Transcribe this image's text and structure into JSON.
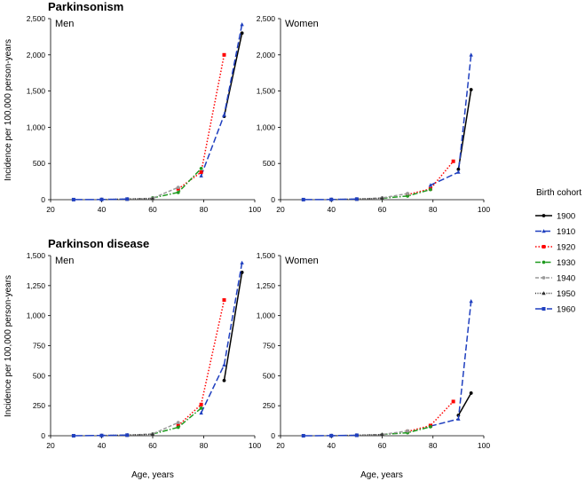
{
  "chart_data": {
    "type": "line",
    "shared": {
      "ylabel": "Incidence per 100,000 person-years",
      "xlabel": "Age, years",
      "xlim": [
        20,
        100
      ],
      "xticks": [
        20,
        40,
        60,
        80,
        100
      ],
      "legend_title": "Birth cohort",
      "legend_position": "right"
    },
    "cohorts": [
      {
        "name": "1900",
        "color": "#000000",
        "dash": "",
        "marker": "circle"
      },
      {
        "name": "1910",
        "color": "#1f3fbf",
        "dash": "7,3",
        "marker": "triangle"
      },
      {
        "name": "1920",
        "color": "#ff0000",
        "dash": "1.5,2",
        "marker": "square"
      },
      {
        "name": "1930",
        "color": "#1f9a1f",
        "dash": "6,2,1.5,2",
        "marker": "circle"
      },
      {
        "name": "1940",
        "color": "#999999",
        "dash": "4,2",
        "marker": "circle"
      },
      {
        "name": "1950",
        "color": "#333333",
        "dash": "1,1.5",
        "marker": "triangle"
      },
      {
        "name": "1960",
        "color": "#1f3fbf",
        "dash": "10,3",
        "marker": "square"
      }
    ],
    "panels": [
      {
        "id": "parkinsonism-men",
        "title": "Parkinsonism",
        "label": "Men",
        "ylim": [
          0,
          2500
        ],
        "yticks": [
          0,
          500,
          1000,
          1500,
          2000,
          2500
        ],
        "ytick_labels": [
          "0",
          "500",
          "1,000",
          "1,500",
          "2,000",
          "2,500"
        ],
        "series": [
          {
            "name": "1900",
            "x": [
              88,
              95
            ],
            "y": [
              1150,
              2300
            ]
          },
          {
            "name": "1910",
            "x": [
              79,
              88,
              95
            ],
            "y": [
              330,
              1170,
              2420
            ]
          },
          {
            "name": "1920",
            "x": [
              70,
              79,
              88
            ],
            "y": [
              150,
              380,
              2000
            ]
          },
          {
            "name": "1930",
            "x": [
              60,
              70,
              79
            ],
            "y": [
              25,
              100,
              430
            ]
          },
          {
            "name": "1940",
            "x": [
              50,
              60,
              70
            ],
            "y": [
              8,
              20,
              170
            ]
          },
          {
            "name": "1950",
            "x": [
              40,
              50,
              60
            ],
            "y": [
              3,
              8,
              15
            ]
          },
          {
            "name": "1960",
            "x": [
              29,
              40,
              50
            ],
            "y": [
              1,
              3,
              8
            ]
          }
        ]
      },
      {
        "id": "parkinsonism-women",
        "title": "",
        "label": "Women",
        "ylim": [
          0,
          2500
        ],
        "yticks": [
          0,
          500,
          1000,
          1500,
          2000,
          2500
        ],
        "ytick_labels": [
          "0",
          "500",
          "1,000",
          "1,500",
          "2,000",
          "2,500"
        ],
        "series": [
          {
            "name": "1900",
            "x": [
              90,
              95
            ],
            "y": [
              420,
              1520
            ]
          },
          {
            "name": "1910",
            "x": [
              79,
              90,
              95
            ],
            "y": [
              200,
              380,
              2000
            ]
          },
          {
            "name": "1920",
            "x": [
              70,
              79,
              88
            ],
            "y": [
              70,
              150,
              530
            ]
          },
          {
            "name": "1930",
            "x": [
              60,
              70,
              79
            ],
            "y": [
              20,
              50,
              140
            ]
          },
          {
            "name": "1940",
            "x": [
              50,
              60,
              70
            ],
            "y": [
              8,
              25,
              85
            ]
          },
          {
            "name": "1950",
            "x": [
              40,
              50,
              60
            ],
            "y": [
              3,
              8,
              20
            ]
          },
          {
            "name": "1960",
            "x": [
              29,
              40,
              50
            ],
            "y": [
              1,
              3,
              8
            ]
          }
        ]
      },
      {
        "id": "parkinson-disease-men",
        "title": "Parkinson disease",
        "label": "Men",
        "ylim": [
          0,
          1500
        ],
        "yticks": [
          0,
          250,
          500,
          750,
          1000,
          1250,
          1500
        ],
        "ytick_labels": [
          "0",
          "250",
          "500",
          "750",
          "1,000",
          "1,250",
          "1,500"
        ],
        "series": [
          {
            "name": "1900",
            "x": [
              88,
              95
            ],
            "y": [
              460,
              1360
            ]
          },
          {
            "name": "1910",
            "x": [
              79,
              88,
              95
            ],
            "y": [
              190,
              590,
              1440
            ]
          },
          {
            "name": "1920",
            "x": [
              70,
              79,
              88
            ],
            "y": [
              85,
              260,
              1130
            ]
          },
          {
            "name": "1930",
            "x": [
              60,
              70,
              79
            ],
            "y": [
              15,
              70,
              230
            ]
          },
          {
            "name": "1940",
            "x": [
              50,
              60,
              70
            ],
            "y": [
              5,
              15,
              110
            ]
          },
          {
            "name": "1950",
            "x": [
              40,
              50,
              60
            ],
            "y": [
              2,
              5,
              12
            ]
          },
          {
            "name": "1960",
            "x": [
              29,
              40,
              50
            ],
            "y": [
              0,
              2,
              5
            ]
          }
        ]
      },
      {
        "id": "parkinson-disease-women",
        "title": "",
        "label": "Women",
        "ylim": [
          0,
          1500
        ],
        "yticks": [
          0,
          250,
          500,
          750,
          1000,
          1250,
          1500
        ],
        "ytick_labels": [
          "0",
          "250",
          "500",
          "750",
          "1,000",
          "1,250",
          "1,500"
        ],
        "series": [
          {
            "name": "1900",
            "x": [
              90,
              95
            ],
            "y": [
              170,
              355
            ]
          },
          {
            "name": "1910",
            "x": [
              79,
              90,
              95
            ],
            "y": [
              80,
              140,
              1120
            ]
          },
          {
            "name": "1920",
            "x": [
              70,
              79,
              88
            ],
            "y": [
              35,
              85,
              285
            ]
          },
          {
            "name": "1930",
            "x": [
              60,
              70,
              79
            ],
            "y": [
              10,
              25,
              75
            ]
          },
          {
            "name": "1940",
            "x": [
              50,
              60,
              70
            ],
            "y": [
              4,
              10,
              40
            ]
          },
          {
            "name": "1950",
            "x": [
              40,
              50,
              60
            ],
            "y": [
              1,
              4,
              10
            ]
          },
          {
            "name": "1960",
            "x": [
              29,
              40,
              50
            ],
            "y": [
              0,
              1,
              4
            ]
          }
        ]
      }
    ]
  }
}
